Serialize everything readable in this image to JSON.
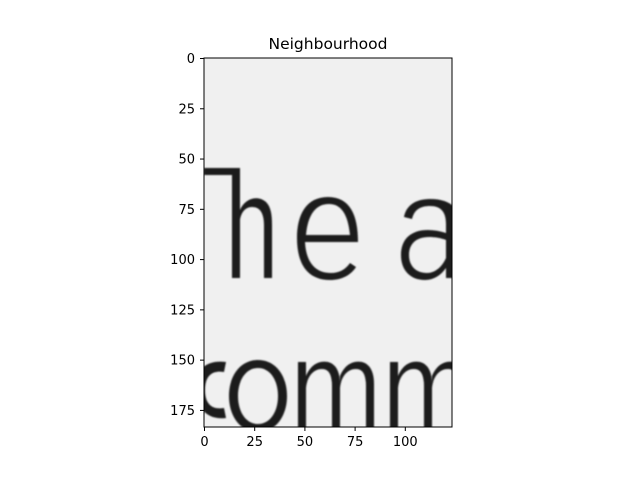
{
  "chart_data": {
    "type": "heatmap",
    "title": "Neighbourhood",
    "xlabel": "",
    "ylabel": "",
    "xlim": [
      0,
      123
    ],
    "ylim": [
      0,
      183
    ],
    "y_inverted": true,
    "colormap": "gray",
    "x_ticks": [
      0,
      25,
      50,
      75,
      100
    ],
    "y_ticks": [
      0,
      25,
      50,
      75,
      100,
      125,
      150,
      175
    ],
    "image_content": "grayscale crop of scanned printed text showing the words \"The a\" over the start of \"comm\"",
    "visible_text_fragments": [
      "The a",
      "comm"
    ],
    "grid": false,
    "legend": "none"
  }
}
